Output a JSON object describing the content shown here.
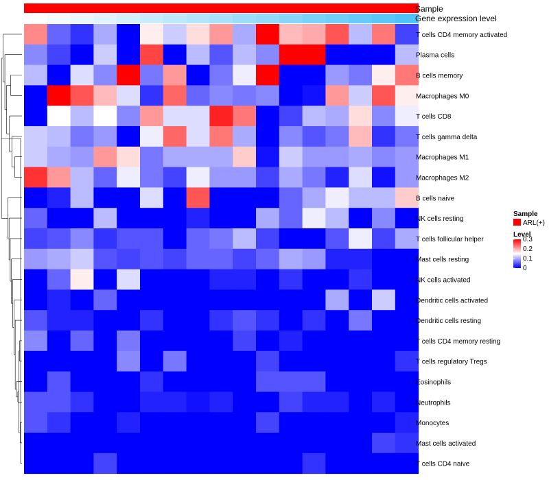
{
  "chart_data": {
    "type": "heatmap",
    "title": "",
    "columns": 17,
    "annotations": [
      {
        "name": "Sample",
        "values": [
          "ARL(+)",
          "ARL(+)",
          "ARL(+)",
          "ARL(+)",
          "ARL(+)",
          "ARL(+)",
          "ARL(+)",
          "ARL(+)",
          "ARL(+)",
          "ARL(+)",
          "ARL(+)",
          "ARL(+)",
          "ARL(+)",
          "ARL(+)",
          "ARL(+)",
          "ARL(+)",
          "ARL(+)"
        ]
      },
      {
        "name": "Gene expression level",
        "values": [
          0.0,
          0.06,
          0.12,
          0.18,
          0.25,
          0.31,
          0.37,
          0.43,
          0.5,
          0.56,
          0.62,
          0.68,
          0.75,
          0.81,
          0.87,
          0.93,
          1.0
        ]
      }
    ],
    "rows": [
      {
        "label": "T cells CD4 memory activated",
        "values": [
          0.22,
          0.06,
          0.03,
          0.1,
          0.0,
          0.16,
          0.12,
          0.17,
          0.21,
          0.1,
          0.3,
          0.19,
          0.2,
          0.25,
          0.11,
          0.23,
          0.04
        ]
      },
      {
        "label": "Plasma cells",
        "values": [
          0.08,
          0.04,
          0.0,
          0.12,
          0.0,
          0.26,
          0.0,
          0.11,
          0.05,
          0.11,
          0.08,
          0.3,
          0.3,
          0.0,
          0.0,
          0.0,
          0.11
        ]
      },
      {
        "label": "B cells memory",
        "values": [
          0.11,
          0.0,
          0.13,
          0.08,
          0.3,
          0.07,
          0.21,
          0.0,
          0.07,
          0.14,
          0.3,
          0.0,
          0.0,
          0.09,
          0.07,
          0.16,
          0.23
        ]
      },
      {
        "label": "Macrophages M0",
        "values": [
          0.0,
          0.3,
          0.25,
          0.19,
          0.13,
          0.03,
          0.24,
          0.06,
          0.08,
          0.07,
          0.08,
          0.0,
          0.01,
          0.21,
          0.12,
          0.25,
          0.16
        ]
      },
      {
        "label": "T cells CD8",
        "values": [
          0.0,
          0.15,
          0.11,
          0.15,
          0.08,
          0.21,
          0.13,
          0.13,
          0.28,
          0.23,
          0.0,
          0.04,
          0.11,
          0.1,
          0.17,
          0.08,
          0.14
        ]
      },
      {
        "label": "T cells gamma delta",
        "values": [
          0.12,
          0.11,
          0.07,
          0.09,
          0.0,
          0.14,
          0.24,
          0.13,
          0.23,
          0.1,
          0.0,
          0.08,
          0.05,
          0.07,
          0.19,
          0.03,
          0.07
        ]
      },
      {
        "label": "Macrophages M1",
        "values": [
          0.12,
          0.1,
          0.09,
          0.21,
          0.17,
          0.07,
          0.1,
          0.1,
          0.1,
          0.18,
          0.01,
          0.12,
          0.09,
          0.09,
          0.1,
          0.08,
          0.09
        ]
      },
      {
        "label": "Macrophages M2",
        "values": [
          0.27,
          0.21,
          0.11,
          0.06,
          0.14,
          0.07,
          0.04,
          0.14,
          0.09,
          0.09,
          0.04,
          0.1,
          0.07,
          0.02,
          0.13,
          0.01,
          0.09
        ]
      },
      {
        "label": "B cells naive",
        "values": [
          0.0,
          0.02,
          0.11,
          0.0,
          0.0,
          0.13,
          0.0,
          0.25,
          0.0,
          0.0,
          0.0,
          0.06,
          0.1,
          0.14,
          0.11,
          0.11,
          0.18
        ]
      },
      {
        "label": "NK cells resting",
        "values": [
          0.06,
          0.0,
          0.0,
          0.11,
          0.0,
          0.0,
          0.0,
          0.02,
          0.0,
          0.0,
          0.1,
          0.06,
          0.14,
          0.11,
          0.0,
          0.08,
          0.0
        ]
      },
      {
        "label": "T cells follicular helper",
        "values": [
          0.04,
          0.05,
          0.08,
          0.03,
          0.05,
          0.05,
          0.0,
          0.06,
          0.07,
          0.11,
          0.04,
          0.0,
          0.0,
          0.05,
          0.14,
          0.04,
          0.1
        ]
      },
      {
        "label": "Mast cells resting",
        "values": [
          0.09,
          0.1,
          0.12,
          0.05,
          0.04,
          0.05,
          0.04,
          0.06,
          0.06,
          0.04,
          0.06,
          0.1,
          0.09,
          0.02,
          0.02,
          0.0,
          0.0
        ]
      },
      {
        "label": "NK cells activated",
        "values": [
          0.0,
          0.06,
          0.16,
          0.0,
          0.13,
          0.0,
          0.0,
          0.0,
          0.02,
          0.02,
          0.0,
          0.03,
          0.0,
          0.0,
          0.03,
          0.0,
          0.0
        ]
      },
      {
        "label": "Dendritic cells activated",
        "values": [
          0.0,
          0.02,
          0.0,
          0.06,
          0.0,
          0.0,
          0.0,
          0.0,
          0.0,
          0.0,
          0.0,
          0.0,
          0.0,
          0.1,
          0.0,
          0.12,
          0.0
        ]
      },
      {
        "label": "Dendritic cells resting",
        "values": [
          0.05,
          0.02,
          0.02,
          0.0,
          0.0,
          0.03,
          0.0,
          0.0,
          0.03,
          0.05,
          0.03,
          0.0,
          0.03,
          0.0,
          0.07,
          0.0,
          0.0
        ]
      },
      {
        "label": "T cells CD4 memory resting",
        "values": [
          0.08,
          0.0,
          0.06,
          0.0,
          0.07,
          0.0,
          0.0,
          0.0,
          0.0,
          0.04,
          0.0,
          0.02,
          0.0,
          0.0,
          0.0,
          0.0,
          0.0
        ]
      },
      {
        "label": "T cells regulatory  Tregs",
        "values": [
          0.0,
          0.0,
          0.0,
          0.0,
          0.08,
          0.0,
          0.07,
          0.0,
          0.0,
          0.0,
          0.04,
          0.0,
          0.0,
          0.0,
          0.0,
          0.0,
          0.03
        ]
      },
      {
        "label": "Eosinophils",
        "values": [
          0.0,
          0.05,
          0.0,
          0.0,
          0.0,
          0.03,
          0.0,
          0.0,
          0.0,
          0.0,
          0.05,
          0.05,
          0.05,
          0.0,
          0.0,
          0.0,
          0.0
        ]
      },
      {
        "label": "Neutrophils",
        "values": [
          0.05,
          0.05,
          0.03,
          0.0,
          0.0,
          0.02,
          0.02,
          0.01,
          0.02,
          0.0,
          0.0,
          0.04,
          0.02,
          0.02,
          0.0,
          0.02,
          0.0
        ]
      },
      {
        "label": "Monocytes",
        "values": [
          0.05,
          0.03,
          0.0,
          0.0,
          0.02,
          0.0,
          0.0,
          0.0,
          0.0,
          0.0,
          0.04,
          0.0,
          0.0,
          0.0,
          0.0,
          0.0,
          0.02
        ]
      },
      {
        "label": "Mast cells activated",
        "values": [
          0.0,
          0.0,
          0.0,
          0.0,
          0.0,
          0.0,
          0.0,
          0.0,
          0.0,
          0.0,
          0.0,
          0.0,
          0.0,
          0.0,
          0.0,
          0.04,
          0.03
        ]
      },
      {
        "label": "T cells CD4 naive",
        "values": [
          0.0,
          0.0,
          0.0,
          0.04,
          0.0,
          0.0,
          0.0,
          0.0,
          0.0,
          0.0,
          0.0,
          0.0,
          0.03,
          0.0,
          0.0,
          0.0,
          0.0
        ]
      }
    ],
    "dendrogram_merges": [
      [
        19,
        20,
        0.02
      ],
      [
        15,
        16,
        0.05
      ],
      [
        -2,
        -1,
        0.08
      ],
      [
        18,
        -3,
        0.14
      ],
      [
        17,
        -4,
        0.21
      ],
      [
        -5,
        14,
        0.27
      ],
      [
        13,
        -6,
        0.33
      ],
      [
        12,
        -7,
        0.4
      ],
      [
        11,
        -8,
        0.46
      ],
      [
        10,
        -9,
        0.52
      ],
      [
        9,
        -10,
        0.58
      ],
      [
        8,
        -11,
        0.64
      ],
      [
        6,
        7,
        0.3
      ],
      [
        5,
        -13,
        0.44
      ],
      [
        4,
        -14,
        0.56
      ],
      [
        2,
        3,
        0.5
      ],
      [
        -16,
        -15,
        0.7
      ],
      [
        1,
        -17,
        0.79
      ],
      [
        0,
        -18,
        0.88
      ],
      [
        -12,
        -19,
        0.96
      ],
      [
        21,
        -20,
        0.0
      ]
    ],
    "color_scale": {
      "min": 0,
      "mid": 0.15,
      "max": 0.3,
      "low_color": "#0000ff",
      "mid_color": "#ffffff",
      "high_color": "#ff0000"
    },
    "legend": {
      "sample_title": "Sample",
      "sample_entry": "ARL(+)",
      "sample_color": "#ff0000",
      "level_title": "Level",
      "level_ticks": [
        "0.3",
        "0.2",
        "0.1",
        "0"
      ],
      "level_tick_values": [
        0.3,
        0.2,
        0.1,
        0
      ],
      "placement": "right"
    },
    "annotation_colors": {
      "sample": "#ff0000",
      "level_low": "#ffffff",
      "level_high": "#4fc3f7"
    }
  }
}
